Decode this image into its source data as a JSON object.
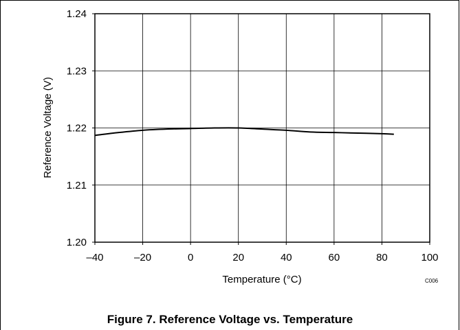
{
  "chart_data": {
    "type": "line",
    "title": "",
    "xlabel": "Temperature (°C)",
    "ylabel": "Reference Voltage (V)",
    "xlim": [
      -40,
      100
    ],
    "ylim": [
      1.2,
      1.24
    ],
    "x_ticks": [
      "–40",
      "–20",
      "0",
      "20",
      "40",
      "60",
      "80",
      "100"
    ],
    "y_ticks": [
      "1.20",
      "1.21",
      "1.22",
      "1.23",
      "1.24"
    ],
    "grid": true,
    "series": [
      {
        "color": "#000000",
        "x": [
          -40,
          -30,
          -20,
          -10,
          0,
          10,
          20,
          30,
          40,
          50,
          60,
          70,
          80,
          85
        ],
        "y": [
          1.2187,
          1.2192,
          1.2196,
          1.2198,
          1.2199,
          1.22,
          1.22,
          1.2198,
          1.2196,
          1.2193,
          1.2192,
          1.2191,
          1.219,
          1.2189
        ]
      }
    ],
    "code_label": "C006"
  },
  "caption": "Figure 7. Reference Voltage vs. Temperature"
}
